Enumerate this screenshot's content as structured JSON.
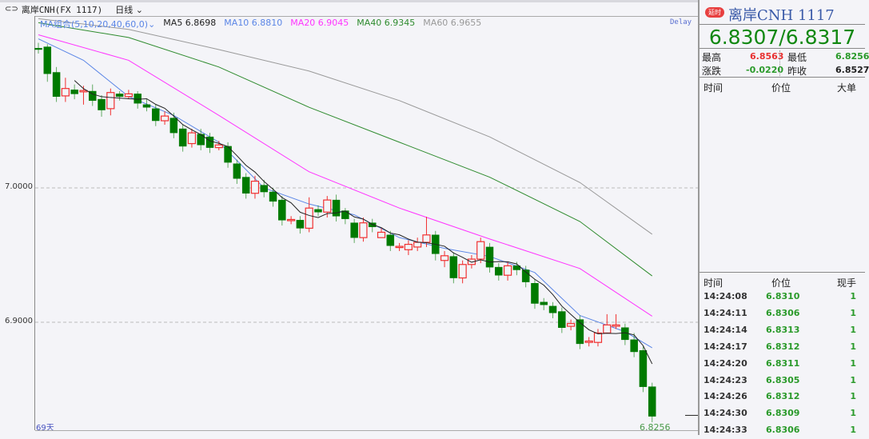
{
  "header": {
    "symbol": "离岸CNH(FX 1117)",
    "period": "日线"
  },
  "legend": {
    "group": "MA组合(5,10,20,40,60,0)",
    "ma5": "MA5 6.8698",
    "ma10": "MA10 6.8810",
    "ma20": "MA20 6.9045",
    "ma40": "MA40 6.9345",
    "ma60": "MA60 6.9655"
  },
  "delay_label": "Delay",
  "days_label": "69天",
  "last_low_label": "6.8256",
  "colors": {
    "up": "#f03030",
    "down": "#007a00",
    "ma5": "#222222",
    "ma10": "#5b86e6",
    "ma20": "#ff33ff",
    "ma40": "#2e8b2e",
    "ma60": "#999999"
  },
  "chart_data": {
    "type": "candlestick",
    "y_ticks": [
      "7.0000",
      "6.9000"
    ],
    "ylim": [
      6.81,
      7.127
    ],
    "open": [
      7.104,
      7.105,
      7.086,
      7.0685,
      7.073,
      7.0715,
      7.072,
      7.066,
      7.059,
      7.07,
      7.068,
      7.07,
      7.062,
      7.059,
      7.05,
      7.052,
      7.044,
      7.033,
      7.04,
      7.038,
      7.03,
      7.031,
      7.018,
      7.008,
      6.996,
      7.002,
      6.997,
      6.991,
      6.976,
      6.976,
      6.97,
      6.984,
      6.982,
      6.991,
      6.983,
      6.974,
      6.963,
      6.974,
      6.963,
      6.965,
      6.956,
      6.954,
      6.956,
      6.9595,
      6.965,
      6.946,
      6.949,
      6.933,
      6.943,
      6.947,
      6.956,
      6.941,
      6.935,
      6.942,
      6.939,
      6.929,
      6.915,
      6.912,
      6.908,
      6.897,
      6.902,
      6.885,
      6.885,
      6.892,
      6.897,
      6.896,
      6.887,
      6.879,
      6.852
    ],
    "close": [
      7.103,
      7.085,
      7.068,
      7.074,
      7.07,
      7.0725,
      7.065,
      7.058,
      7.071,
      7.068,
      7.07,
      7.063,
      7.06,
      7.05,
      7.0535,
      7.041,
      7.031,
      7.041,
      7.032,
      7.03,
      7.032,
      7.019,
      7.007,
      6.996,
      7.005,
      6.997,
      6.99,
      6.976,
      6.9765,
      6.97,
      6.985,
      6.982,
      6.991,
      6.979,
      6.977,
      6.963,
      6.974,
      6.971,
      6.967,
      6.957,
      6.9565,
      6.958,
      6.9595,
      6.965,
      6.951,
      6.9495,
      6.933,
      6.943,
      6.947,
      6.96,
      6.941,
      6.935,
      6.942,
      6.939,
      6.93,
      6.914,
      6.913,
      6.907,
      6.896,
      6.899,
      6.884,
      6.886,
      6.892,
      6.898,
      6.898,
      6.887,
      6.878,
      6.852,
      6.83
    ],
    "high": [
      7.108,
      7.107,
      7.09,
      7.082,
      7.077,
      7.076,
      7.077,
      7.069,
      7.074,
      7.072,
      7.073,
      7.072,
      7.066,
      7.062,
      7.057,
      7.056,
      7.047,
      7.044,
      7.044,
      7.041,
      7.035,
      7.034,
      7.021,
      7.011,
      7.009,
      7.006,
      7.0,
      6.994,
      6.979,
      6.979,
      6.993,
      6.987,
      6.994,
      6.995,
      6.985,
      6.977,
      6.978,
      6.977,
      6.97,
      6.968,
      6.959,
      6.961,
      6.963,
      6.9785,
      6.968,
      6.953,
      6.952,
      6.946,
      6.95,
      6.963,
      6.959,
      6.944,
      6.945,
      6.945,
      6.942,
      6.932,
      6.918,
      6.915,
      6.911,
      6.902,
      6.905,
      6.889,
      6.895,
      6.906,
      6.906,
      6.899,
      6.892,
      6.882,
      6.855
    ],
    "low": [
      7.1,
      7.079,
      7.064,
      7.064,
      7.066,
      7.062,
      7.061,
      7.053,
      7.054,
      7.065,
      7.066,
      7.059,
      7.057,
      7.046,
      7.047,
      7.037,
      7.027,
      7.03,
      7.028,
      7.026,
      7.028,
      7.015,
      7.003,
      6.992,
      6.992,
      6.993,
      6.986,
      6.972,
      6.973,
      6.966,
      6.967,
      6.979,
      6.978,
      6.975,
      6.973,
      6.959,
      6.96,
      6.967,
      6.963,
      6.953,
      6.953,
      6.95,
      6.953,
      6.956,
      6.946,
      6.941,
      6.929,
      6.929,
      6.94,
      6.944,
      6.937,
      6.931,
      6.931,
      6.935,
      6.926,
      6.91,
      6.909,
      6.903,
      6.892,
      6.894,
      6.88,
      6.882,
      6.882,
      6.894,
      6.895,
      6.883,
      6.874,
      6.848,
      6.8256
    ],
    "ma_series": [
      {
        "name": "MA10",
        "index": [
          0,
          5,
          10,
          15,
          20,
          25,
          30,
          35,
          40,
          45,
          50,
          55,
          60,
          65,
          68
        ],
        "values": [
          7.111,
          7.095,
          7.068,
          7.054,
          7.034,
          7.0,
          6.988,
          6.98,
          6.963,
          6.955,
          6.949,
          6.937,
          6.905,
          6.893,
          6.881
        ]
      },
      {
        "name": "MA20",
        "index": [
          0,
          10,
          20,
          30,
          40,
          50,
          60,
          68
        ],
        "values": [
          7.114,
          7.095,
          7.054,
          7.012,
          6.985,
          6.962,
          6.94,
          6.9045
        ]
      },
      {
        "name": "MA40",
        "index": [
          0,
          10,
          20,
          30,
          40,
          50,
          60,
          68
        ],
        "values": [
          7.123,
          7.112,
          7.09,
          7.06,
          7.034,
          7.008,
          6.975,
          6.9345
        ]
      },
      {
        "name": "MA60",
        "index": [
          0,
          10,
          20,
          30,
          40,
          50,
          60,
          68
        ],
        "values": [
          7.126,
          7.118,
          7.103,
          7.087,
          7.065,
          7.038,
          7.004,
          6.9655
        ]
      }
    ]
  },
  "quote": {
    "badge": "延时",
    "title": "离岸CNH  1117",
    "bid_ask": "6.8307/6.8317",
    "high_label": "最高",
    "high": "6.8563",
    "low_label": "最低",
    "low": "6.8256",
    "change_label": "涨跌",
    "change": "-0.0220",
    "prev_label": "昨收",
    "prev": "6.8527",
    "big_headers": [
      "时间",
      "价位",
      "大单"
    ]
  },
  "ticks": {
    "headers": [
      "时间",
      "价位",
      "现手"
    ],
    "rows": [
      {
        "time": "14:24:08",
        "price": "6.8310",
        "vol": "1"
      },
      {
        "time": "14:24:11",
        "price": "6.8306",
        "vol": "1"
      },
      {
        "time": "14:24:14",
        "price": "6.8313",
        "vol": "1"
      },
      {
        "time": "14:24:17",
        "price": "6.8312",
        "vol": "1"
      },
      {
        "time": "14:24:20",
        "price": "6.8311",
        "vol": "1"
      },
      {
        "time": "14:24:23",
        "price": "6.8305",
        "vol": "1"
      },
      {
        "time": "14:24:26",
        "price": "6.8312",
        "vol": "1"
      },
      {
        "time": "14:24:30",
        "price": "6.8309",
        "vol": "1"
      },
      {
        "time": "14:24:33",
        "price": "6.8306",
        "vol": "1"
      }
    ]
  }
}
